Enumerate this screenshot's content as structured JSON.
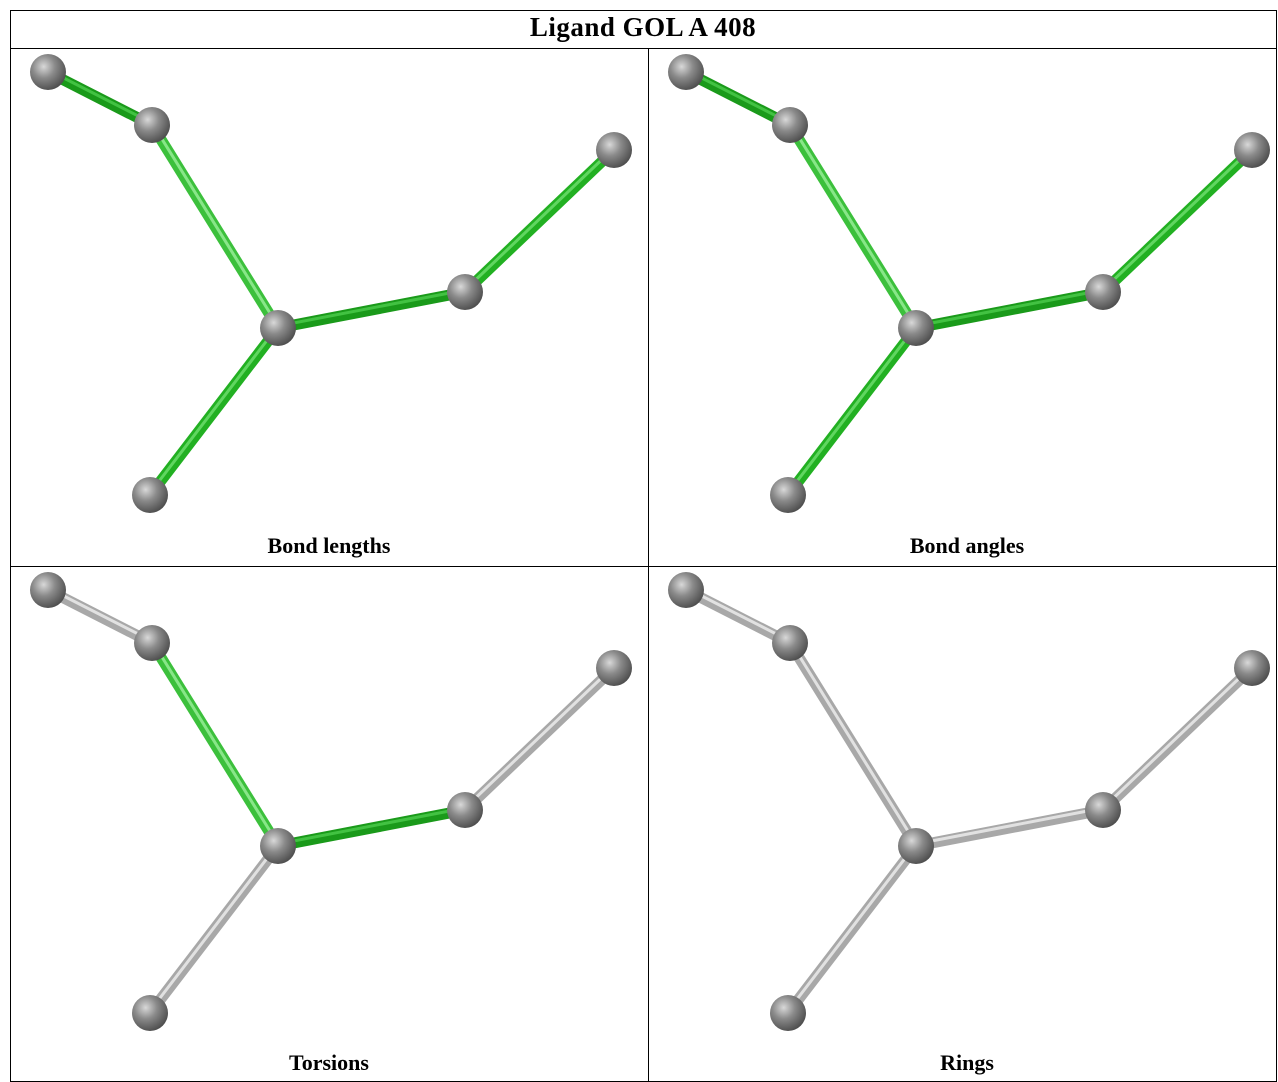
{
  "title": "Ligand GOL A 408",
  "panels": [
    {
      "label": "Bond lengths"
    },
    {
      "label": "Bond angles"
    },
    {
      "label": "Torsions"
    },
    {
      "label": "Rings"
    }
  ]
}
